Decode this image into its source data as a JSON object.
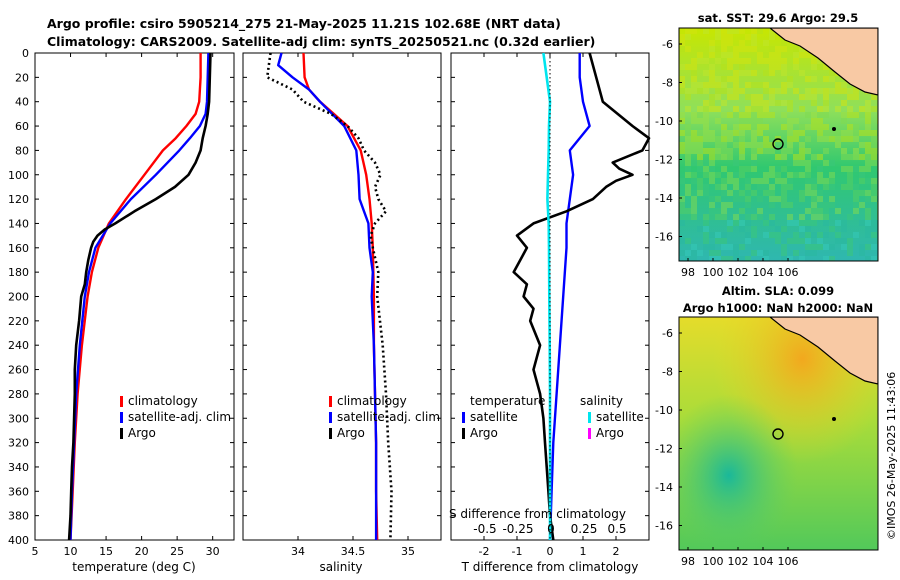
{
  "title": {
    "line1": "Argo profile: csiro 5905214_275 21-May-2025 11.21S 102.68E (NRT data)",
    "line2": "Climatology: CARS2009. Satellite-adj clim: synTS_20250521.nc (0.32d earlier)"
  },
  "colors": {
    "climatology": "#ff0000",
    "satellite": "#0000ff",
    "argo": "#000000",
    "cyan": "#00e5ee",
    "magenta": "#ff00ff"
  },
  "chart_data": [
    {
      "type": "line",
      "name": "temperature",
      "xlabel": "temperature (deg C)",
      "xlim": [
        5,
        33
      ],
      "ylim": [
        0,
        400
      ],
      "xticks": [
        "5",
        "10",
        "15",
        "20",
        "25",
        "30"
      ],
      "yticks": [
        "0",
        "20",
        "40",
        "60",
        "80",
        "100",
        "120",
        "140",
        "160",
        "180",
        "200",
        "220",
        "240",
        "260",
        "280",
        "300",
        "320",
        "340",
        "360",
        "380",
        "400"
      ],
      "legend": [
        "climatology",
        "satellite-adj. clim",
        "Argo"
      ],
      "series": [
        {
          "name": "climatology",
          "depth": [
            0,
            20,
            40,
            50,
            60,
            70,
            80,
            100,
            120,
            140,
            160,
            180,
            200,
            240,
            280,
            320,
            360,
            400
          ],
          "values": [
            28.3,
            28.3,
            28.1,
            27.6,
            26.3,
            24.8,
            23.0,
            20.4,
            17.8,
            15.4,
            13.9,
            13.0,
            12.4,
            11.6,
            11.0,
            10.6,
            10.3,
            10.0
          ]
        },
        {
          "name": "satellite-adj. clim",
          "depth": [
            0,
            20,
            40,
            50,
            60,
            70,
            80,
            100,
            120,
            140,
            160,
            180,
            200,
            240,
            280,
            320,
            360,
            400
          ],
          "values": [
            29.4,
            29.3,
            29.2,
            29.0,
            28.2,
            26.8,
            25.3,
            22.0,
            18.5,
            15.6,
            13.5,
            12.6,
            12.0,
            11.3,
            10.8,
            10.5,
            10.2,
            10.0
          ]
        },
        {
          "name": "Argo",
          "depth": [
            0,
            20,
            40,
            50,
            60,
            70,
            80,
            90,
            100,
            110,
            120,
            130,
            140,
            145,
            150,
            155,
            160,
            170,
            180,
            190,
            200,
            220,
            240,
            260,
            280,
            300,
            320,
            340,
            360,
            380,
            400
          ],
          "values": [
            29.7,
            29.6,
            29.5,
            29.3,
            29.0,
            28.6,
            28.3,
            27.6,
            26.6,
            24.7,
            22.0,
            19.0,
            16.3,
            14.8,
            13.8,
            13.2,
            12.9,
            12.5,
            12.2,
            12.0,
            11.5,
            11.2,
            10.8,
            10.6,
            10.6,
            10.5,
            10.4,
            10.2,
            10.1,
            10.0,
            9.8
          ]
        }
      ]
    },
    {
      "type": "line",
      "name": "salinity",
      "xlabel": "salinity",
      "xlim": [
        33.5,
        35.3
      ],
      "ylim": [
        0,
        400
      ],
      "xticks": [
        "34",
        "34.5",
        "35"
      ],
      "legend": [
        "climatology",
        "satellite-adj. clim",
        "Argo"
      ],
      "series": [
        {
          "name": "climatology",
          "depth": [
            0,
            20,
            30,
            40,
            60,
            80,
            100,
            120,
            140,
            160,
            200,
            240,
            280,
            320,
            360,
            400
          ],
          "values": [
            34.05,
            34.06,
            34.1,
            34.2,
            34.45,
            34.57,
            34.62,
            34.65,
            34.67,
            34.68,
            34.69,
            34.69,
            34.7,
            34.71,
            34.71,
            34.72
          ]
        },
        {
          "name": "satellite-adj. clim",
          "depth": [
            0,
            10,
            20,
            30,
            40,
            60,
            80,
            100,
            120,
            130,
            140,
            160,
            180,
            200,
            240,
            280,
            320,
            360,
            400
          ],
          "values": [
            33.85,
            33.82,
            33.95,
            34.1,
            34.2,
            34.42,
            34.53,
            34.55,
            34.56,
            34.6,
            34.64,
            34.65,
            34.68,
            34.67,
            34.69,
            34.7,
            34.71,
            34.71,
            34.71
          ]
        },
        {
          "name": "Argo",
          "depth": [
            0,
            20,
            30,
            40,
            50,
            60,
            70,
            80,
            90,
            100,
            110,
            120,
            130,
            140,
            150,
            160,
            180,
            200,
            240,
            280,
            320,
            360,
            400
          ],
          "values": [
            33.75,
            33.72,
            33.95,
            34.05,
            34.3,
            34.45,
            34.55,
            34.6,
            34.7,
            34.75,
            34.7,
            34.73,
            34.8,
            34.7,
            34.66,
            34.68,
            34.73,
            34.72,
            34.77,
            34.8,
            34.82,
            34.85,
            34.84
          ]
        }
      ]
    },
    {
      "type": "line",
      "name": "difference from climatology",
      "xlabel": "T difference from climatology",
      "xlabel_top": "S difference from climatology",
      "xlim": [
        -3,
        3
      ],
      "ylim": [
        0,
        400
      ],
      "xticks": [
        "-2",
        "-1",
        "0",
        "1",
        "2"
      ],
      "xticks_top": [
        "-0.5",
        "-0.25",
        "0",
        "0.25",
        "0.5"
      ],
      "legend": {
        "temperature_heading": "temperature",
        "salinity_heading": "salinity",
        "temperature": [
          "satellite",
          "Argo"
        ],
        "salinity": [
          "satellite",
          "Argo"
        ]
      },
      "series": [
        {
          "name": "T satellite - clim",
          "depth": [
            0,
            20,
            40,
            60,
            80,
            100,
            120,
            140,
            160,
            200,
            240,
            280,
            320,
            360,
            400
          ],
          "values": [
            0.9,
            0.9,
            1.0,
            1.2,
            0.6,
            0.7,
            0.6,
            0.5,
            0.5,
            0.4,
            0.3,
            0.2,
            0.1,
            0.05,
            0.0
          ]
        },
        {
          "name": "T Argo - clim",
          "depth": [
            0,
            20,
            40,
            60,
            70,
            80,
            90,
            95,
            100,
            105,
            110,
            120,
            130,
            140,
            150,
            160,
            170,
            180,
            190,
            200,
            210,
            220,
            240,
            260,
            280,
            300,
            320,
            340,
            360,
            380,
            400
          ],
          "values": [
            1.2,
            1.4,
            1.6,
            2.5,
            3.0,
            2.8,
            1.9,
            2.1,
            2.5,
            2.0,
            1.7,
            1.3,
            0.5,
            -0.5,
            -1.0,
            -0.7,
            -0.9,
            -1.1,
            -0.7,
            -0.8,
            -0.5,
            -0.6,
            -0.3,
            -0.5,
            -0.3,
            -0.2,
            -0.15,
            -0.1,
            -0.05,
            0.0,
            0.1
          ]
        },
        {
          "name": "S satellite - clim",
          "depth": [
            0,
            20,
            40,
            60,
            80,
            100,
            120,
            140,
            160,
            200,
            240,
            280,
            320,
            360,
            400
          ],
          "values": [
            -0.2,
            -0.1,
            0.0,
            -0.03,
            -0.04,
            -0.06,
            -0.08,
            -0.04,
            -0.03,
            -0.02,
            -0.01,
            0.0,
            0.0,
            0.0,
            0.0
          ]
        }
      ]
    }
  ],
  "maps": [
    {
      "title": "sat. SST: 29.6 Argo: 29.5",
      "xticks": [
        "98",
        "100",
        "102",
        "104",
        "106"
      ],
      "yticks": [
        "-6",
        "-8",
        "-10",
        "-12",
        "-14",
        "-16"
      ]
    },
    {
      "title_line1": "Altim. SLA: 0.099",
      "title_line2": "Argo h1000: NaN h2000: NaN",
      "xticks": [
        "98",
        "100",
        "102",
        "104",
        "106"
      ],
      "yticks": [
        "-6",
        "-8",
        "-10",
        "-12",
        "-14",
        "-16"
      ]
    }
  ],
  "stamp": "©IMOS 26-May-2025 11:43:06"
}
